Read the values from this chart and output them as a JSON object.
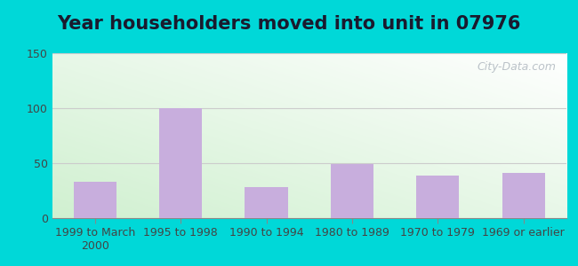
{
  "title": "Year householders moved into unit in 07976",
  "categories": [
    "1999 to March\n2000",
    "1995 to 1998",
    "1990 to 1994",
    "1980 to 1989",
    "1970 to 1979",
    "1969 or earlier"
  ],
  "values": [
    33,
    100,
    28,
    49,
    39,
    41
  ],
  "bar_color": "#c8aedd",
  "ylim": [
    0,
    150
  ],
  "yticks": [
    0,
    50,
    100,
    150
  ],
  "background_outer": "#00d8d8",
  "watermark": "City-Data.com",
  "title_fontsize": 15,
  "tick_fontsize": 9,
  "bar_width": 0.5,
  "gradient_colors": [
    "#d8f0d0",
    "#ffffff"
  ],
  "grid_color": "#cccccc"
}
